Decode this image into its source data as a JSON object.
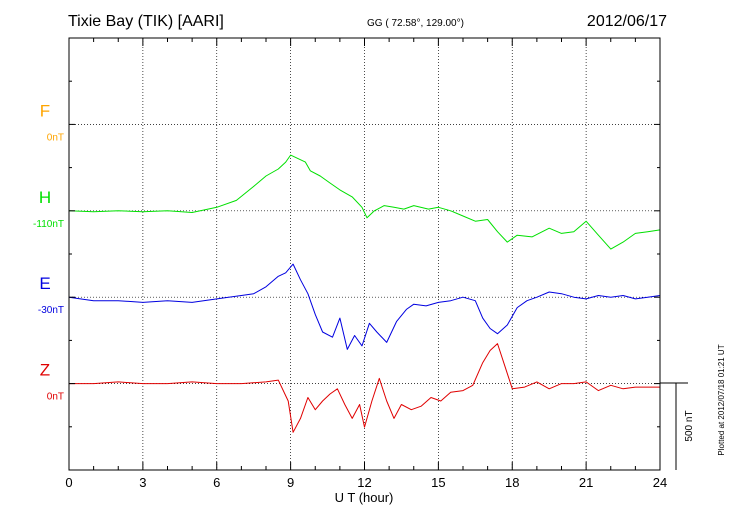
{
  "header": {
    "station": "Tixie Bay (TIK)  [AARI]",
    "coords": "GG ( 72.58°, 129.00°)",
    "date": "2012/06/17"
  },
  "footer": {
    "plotted": "Plotted at 2012/07/18 01:21  UT"
  },
  "chart_data": {
    "type": "line",
    "xlabel": "U T (hour)",
    "xlim": [
      0,
      24
    ],
    "xticks": [
      "0",
      "3",
      "6",
      "9",
      "12",
      "15",
      "18",
      "21",
      "24"
    ],
    "scale_bar": {
      "label": "500 nT",
      "value_nT": 500
    },
    "series": [
      {
        "name": "F",
        "baseline_label": "0nT",
        "color": "#ffa500",
        "baseline_row": 1,
        "x": [],
        "y": []
      },
      {
        "name": "H",
        "baseline_label": "-110nT",
        "color": "#00e000",
        "baseline_row": 2,
        "x": [
          0,
          1,
          2,
          3,
          4,
          5,
          6,
          6.8,
          7.5,
          8.0,
          8.5,
          8.8,
          9.0,
          9.3,
          9.6,
          9.8,
          10.2,
          10.6,
          11.0,
          11.5,
          11.9,
          12.1,
          12.4,
          12.8,
          13.2,
          13.6,
          14.0,
          14.6,
          15.0,
          15.5,
          16.0,
          16.5,
          17.0,
          17.4,
          17.8,
          18.2,
          18.8,
          19.5,
          20.0,
          20.5,
          21.0,
          21.5,
          22.0,
          22.5,
          23.0,
          23.5,
          24.0
        ],
        "y": [
          0,
          -5,
          0,
          -5,
          0,
          -10,
          20,
          60,
          140,
          200,
          240,
          280,
          320,
          300,
          280,
          230,
          200,
          160,
          120,
          80,
          20,
          -40,
          0,
          30,
          20,
          10,
          30,
          10,
          20,
          0,
          -30,
          -60,
          -50,
          -120,
          -180,
          -140,
          -150,
          -100,
          -130,
          -120,
          -60,
          -140,
          -220,
          -180,
          -130,
          -120,
          -110
        ]
      },
      {
        "name": "E",
        "baseline_label": "-30nT",
        "color": "#0000e0",
        "baseline_row": 3,
        "x": [
          0,
          1,
          2,
          3,
          4,
          5,
          6,
          7,
          7.5,
          8.0,
          8.5,
          8.8,
          9.1,
          9.4,
          9.7,
          10.0,
          10.3,
          10.7,
          11.0,
          11.3,
          11.6,
          11.9,
          12.2,
          12.5,
          12.9,
          13.3,
          13.7,
          14.0,
          14.5,
          15.0,
          15.5,
          16.0,
          16.5,
          16.8,
          17.1,
          17.4,
          17.8,
          18.2,
          18.6,
          19.0,
          19.5,
          20.0,
          20.5,
          21.0,
          21.5,
          22.0,
          22.5,
          23.0,
          23.5,
          24.0
        ],
        "y": [
          0,
          -20,
          -20,
          -30,
          -20,
          -30,
          -10,
          10,
          20,
          60,
          120,
          140,
          190,
          100,
          20,
          -100,
          -200,
          -230,
          -120,
          -300,
          -220,
          -280,
          -150,
          -200,
          -260,
          -140,
          -70,
          -40,
          -50,
          -30,
          -20,
          0,
          -20,
          -120,
          -180,
          -210,
          -160,
          -60,
          -20,
          0,
          30,
          20,
          0,
          -10,
          10,
          0,
          10,
          -10,
          0,
          10
        ]
      },
      {
        "name": "Z",
        "baseline_label": "0nT",
        "color": "#e00000",
        "baseline_row": 4,
        "x": [
          0,
          1,
          2,
          3,
          4,
          5,
          6,
          7,
          8,
          8.5,
          8.9,
          9.1,
          9.4,
          9.7,
          10.0,
          10.3,
          10.6,
          10.9,
          11.2,
          11.5,
          11.8,
          12.0,
          12.3,
          12.6,
          12.9,
          13.2,
          13.5,
          13.9,
          14.3,
          14.7,
          15.1,
          15.5,
          16.0,
          16.4,
          16.8,
          17.1,
          17.4,
          17.7,
          18.0,
          18.5,
          19.0,
          19.5,
          20.0,
          20.5,
          21.0,
          21.5,
          22.0,
          22.5,
          23.0,
          23.5,
          24.0
        ],
        "y": [
          0,
          0,
          10,
          0,
          0,
          10,
          0,
          0,
          10,
          20,
          -100,
          -280,
          -200,
          -80,
          -150,
          -100,
          -60,
          -30,
          -120,
          -200,
          -120,
          -250,
          -100,
          30,
          -100,
          -200,
          -120,
          -150,
          -130,
          -80,
          -100,
          -50,
          -40,
          -10,
          120,
          190,
          230,
          100,
          -30,
          -20,
          10,
          -30,
          0,
          0,
          10,
          -40,
          -10,
          -30,
          -20,
          -20,
          -20
        ]
      }
    ]
  }
}
